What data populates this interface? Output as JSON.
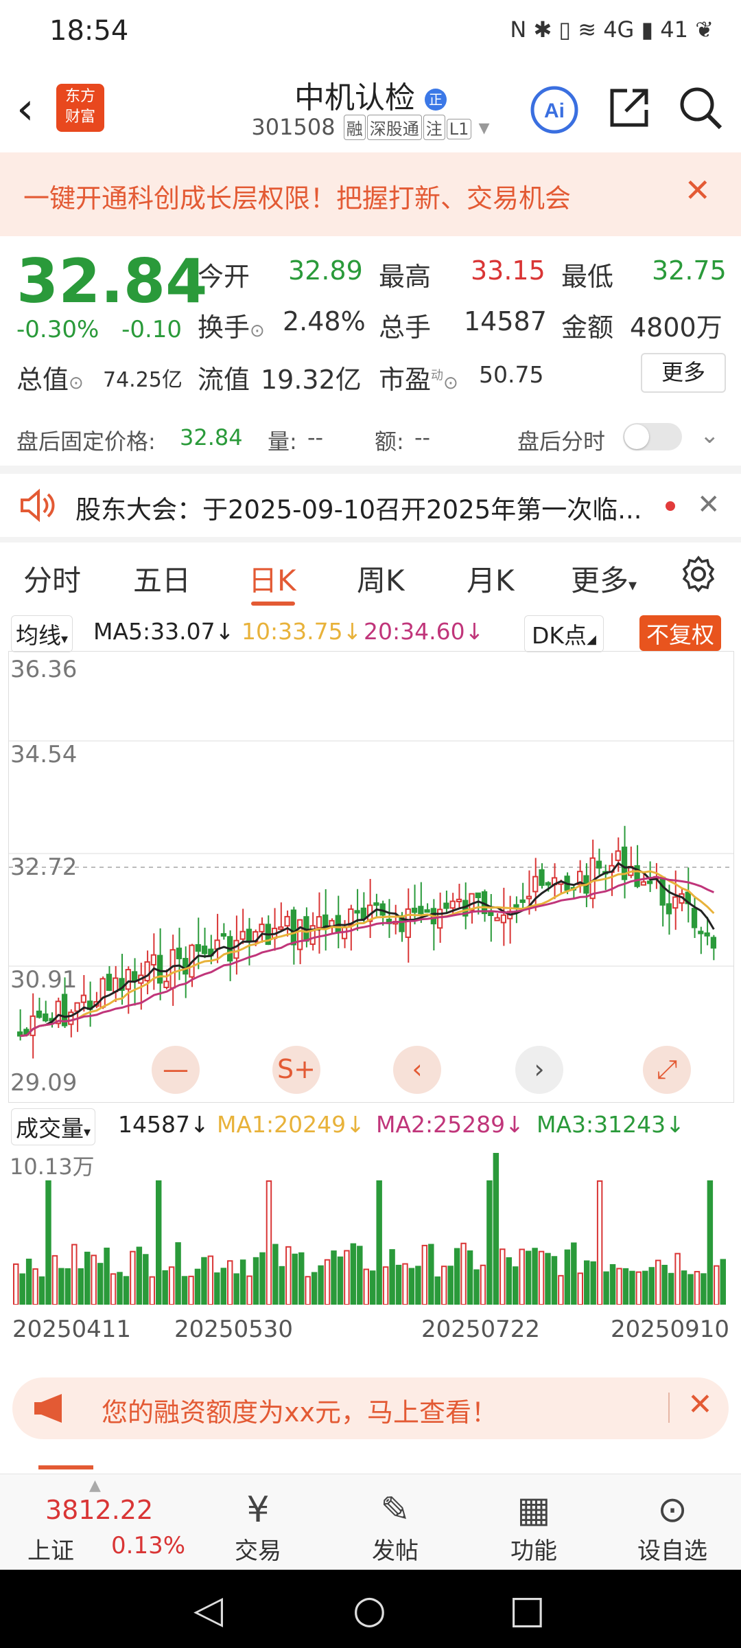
{
  "status_bar": {
    "time": "18:54",
    "icons_right": "N ✱ ▯ ≋ 4G ▮ 41 ❦"
  },
  "header": {
    "logo_line1": "东方",
    "logo_line2": "财富",
    "title": "中机认检",
    "code": "301508",
    "tags": [
      "融",
      "深股通",
      "注",
      "L1"
    ]
  },
  "promo": {
    "text": "一键开通科创成长层权限！把握打新、交易机会"
  },
  "quote": {
    "price": "32.84",
    "change_pct": "-0.30%",
    "change": "-0.10",
    "items": [
      {
        "label": "今开",
        "value": "32.89",
        "color": "green"
      },
      {
        "label": "最高",
        "value": "33.15",
        "color": "red"
      },
      {
        "label": "最低",
        "value": "32.75",
        "color": "green"
      },
      {
        "label": "换手",
        "value": "2.48%",
        "color": "black"
      },
      {
        "label": "总手",
        "value": "14587",
        "color": "black"
      },
      {
        "label": "金额",
        "value": "4800万",
        "color": "black"
      },
      {
        "label": "总值",
        "value": "74.25亿",
        "color": "black"
      },
      {
        "label": "流值",
        "value": "19.32亿",
        "color": "black"
      },
      {
        "label": "市盈",
        "value": "50.75",
        "color": "black"
      }
    ],
    "more_label": "更多",
    "pe_superscript": "动"
  },
  "after_hours": {
    "price_label": "盘后固定价格:",
    "price": "32.84",
    "vol_label": "量:",
    "vol": "--",
    "amt_label": "额:",
    "amt": "--",
    "time_label": "盘后分时"
  },
  "notice": {
    "text": "股东大会：于2025-09-10召开2025年第一次临..."
  },
  "tabs": [
    "分时",
    "五日",
    "日K",
    "周K",
    "月K",
    "更多"
  ],
  "ma": {
    "selector": "均线",
    "ma5": "MA5:33.07",
    "ma10": "10:33.75",
    "ma20": "20:34.60",
    "dk": "DK点",
    "fq": "不复权"
  },
  "chart_axis": {
    "y_top": "36.36",
    "y_2": "34.54",
    "y_3": "32.72",
    "y_4": "30.91",
    "y_bottom": "29.09"
  },
  "volume": {
    "selector": "成交量",
    "value": "14587",
    "ma1": "MA1:20249",
    "ma2": "MA2:25289",
    "ma3": "MA3:31243",
    "max_label": "10.13万"
  },
  "dates": [
    "20250411",
    "20250530",
    "20250722",
    "20250910"
  ],
  "banner": {
    "text": "您的融资额度为xx元，马上查看！"
  },
  "bottom_nav": {
    "index_value": "3812.22",
    "index_name": "上证",
    "index_change": "0.13%",
    "items": [
      "交易",
      "发帖",
      "功能",
      "设自选"
    ]
  },
  "colors": {
    "accent": "#e35a34",
    "up": "#d93535",
    "down": "#2a9a3a",
    "ma5": "#222222",
    "ma10": "#e8b23a",
    "ma20": "#c0357a"
  }
}
